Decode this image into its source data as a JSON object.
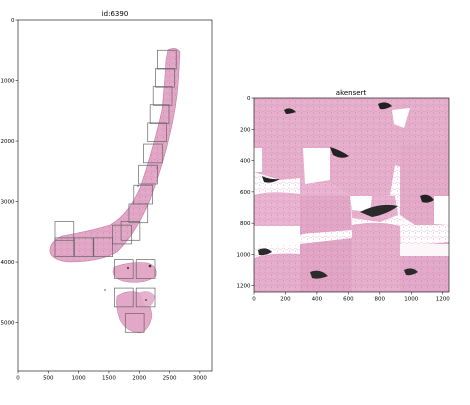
{
  "chart_data": [
    {
      "type": "image",
      "title": "id:6390",
      "xlim": [
        0,
        3200
      ],
      "ylim": [
        5800,
        0
      ],
      "xticks": [
        0,
        500,
        1000,
        1500,
        2000,
        2500,
        3000
      ],
      "yticks": [
        0,
        1000,
        2000,
        3000,
        4000,
        5000
      ],
      "tissue_color": "#e3a8c8",
      "tile_color": "#666666",
      "tile_size": 310,
      "tiles": [
        {
          "x": 2300,
          "y": 500
        },
        {
          "x": 2270,
          "y": 800
        },
        {
          "x": 2230,
          "y": 1100
        },
        {
          "x": 2180,
          "y": 1400
        },
        {
          "x": 2140,
          "y": 1700
        },
        {
          "x": 2070,
          "y": 2050
        },
        {
          "x": 1990,
          "y": 2400
        },
        {
          "x": 1910,
          "y": 2730
        },
        {
          "x": 1830,
          "y": 3040
        },
        {
          "x": 1700,
          "y": 3330
        },
        {
          "x": 1560,
          "y": 3390
        },
        {
          "x": 1250,
          "y": 3600
        },
        {
          "x": 930,
          "y": 3600
        },
        {
          "x": 610,
          "y": 3600
        },
        {
          "x": 610,
          "y": 3330
        },
        {
          "x": 1590,
          "y": 3960
        },
        {
          "x": 1950,
          "y": 3960
        },
        {
          "x": 1590,
          "y": 4430
        },
        {
          "x": 1950,
          "y": 4430
        },
        {
          "x": 1770,
          "y": 4850
        }
      ]
    },
    {
      "type": "image",
      "title": "akensert",
      "xlim": [
        0,
        1240
      ],
      "ylim": [
        1240,
        0
      ],
      "xticks": [
        0,
        200,
        400,
        600,
        800,
        1000,
        1200
      ],
      "yticks": [
        0,
        200,
        400,
        600,
        800,
        1000,
        1200
      ],
      "tissue_color": "#e7b0cd"
    }
  ]
}
